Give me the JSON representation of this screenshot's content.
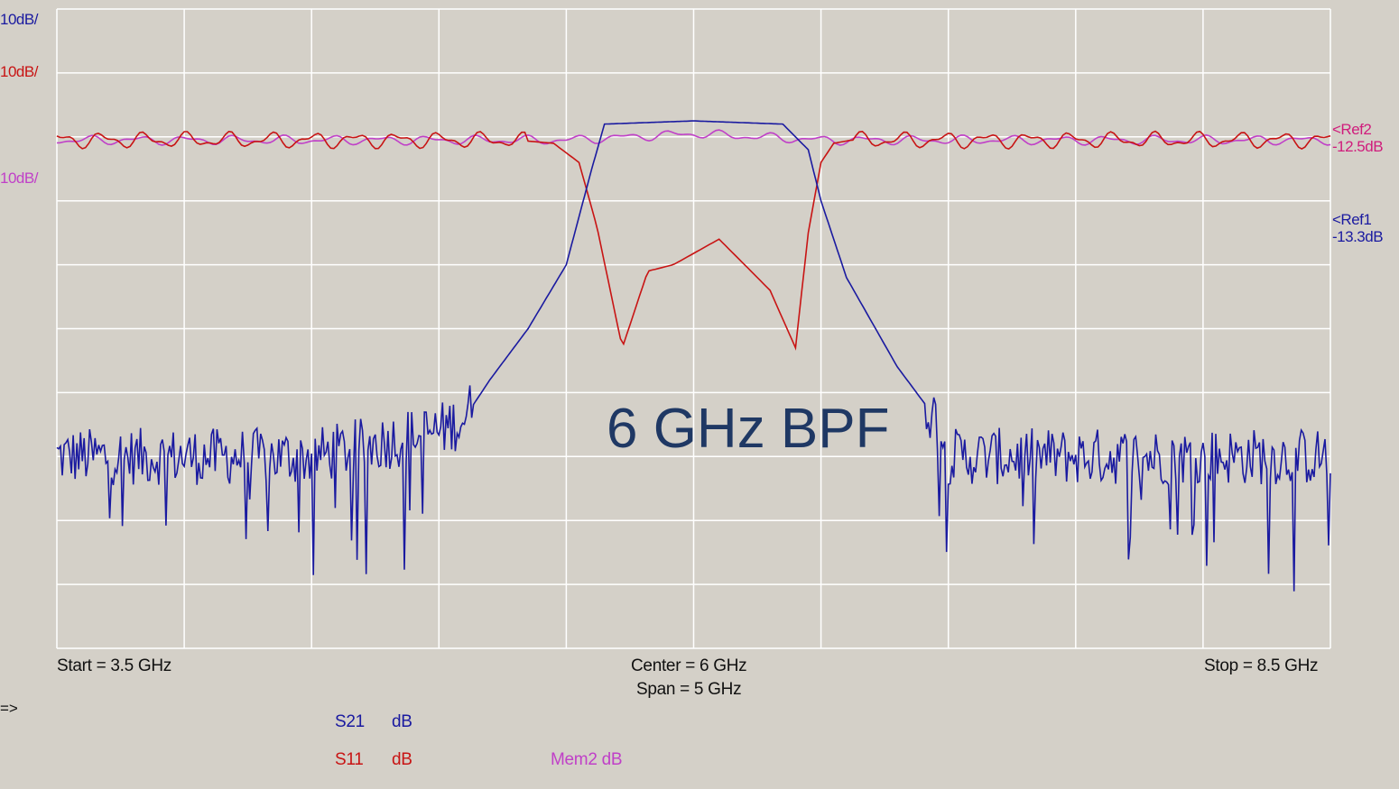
{
  "analyzer": {
    "scale_labels": [
      {
        "text": "10dB/",
        "color": "#1a1aa0"
      },
      {
        "text": "10dB/",
        "color": "#c81414"
      },
      {
        "text": "10dB/",
        "color": "#c040c8"
      }
    ],
    "ref_markers": [
      {
        "arrow": "<Ref2",
        "value": "-12.5dB",
        "color": "#d01c7c"
      },
      {
        "arrow": "<Ref1",
        "value": "-13.3dB",
        "color": "#1a1aa0"
      }
    ],
    "start_label": "Start = 3.5 GHz",
    "center_label": "Center = 6 GHz",
    "span_label": "Span = 5 GHz",
    "stop_label": "Stop = 8.5 GHz",
    "prompt": "=>",
    "legend": [
      {
        "name": "S21",
        "unit": "dB",
        "color": "#1a1aa0"
      },
      {
        "name": "S11",
        "unit": "dB",
        "color": "#c81414"
      },
      {
        "name": "Mem2 dB",
        "unit": "",
        "color": "#c040c8"
      }
    ]
  },
  "annotation": "6 GHz BPF",
  "unit_label": "dBm",
  "chart_data": {
    "type": "line",
    "xlim": [
      3.5,
      8.5
    ],
    "ylim": [
      -100,
      0
    ],
    "grid": true,
    "colors": {
      "grid": "#ffffff",
      "S21": "#1a1aa0",
      "S11": "#c81414",
      "Mem2": "#c040c8",
      "background": "#d4d0c8"
    },
    "series": [
      {
        "name": "S21",
        "x": [
          3.5,
          4.0,
          4.5,
          5.0,
          5.1,
          5.2,
          5.35,
          5.5,
          5.6,
          5.65,
          6.0,
          6.35,
          6.45,
          6.5,
          6.6,
          6.8,
          6.95,
          7.0,
          8.5
        ],
        "y": [
          -70,
          -70,
          -70,
          -66,
          -64,
          -58,
          -50,
          -40,
          -25,
          -18,
          -17.5,
          -18,
          -22,
          -30,
          -42,
          -56,
          -64,
          -70,
          -70
        ]
      },
      {
        "name": "S11",
        "x": [
          3.5,
          5.3,
          5.45,
          5.55,
          5.62,
          5.72,
          5.82,
          5.92,
          6.1,
          6.3,
          6.4,
          6.45,
          6.5,
          6.55,
          6.62,
          6.8,
          8.5
        ],
        "y": [
          -20.5,
          -20.5,
          -21,
          -24,
          -34,
          -53,
          -41,
          -40,
          -36,
          -44,
          -53,
          -35,
          -24,
          -21,
          -20.5,
          -20.5,
          -20.5
        ]
      },
      {
        "name": "Mem2",
        "x": [
          3.5,
          5.5,
          6.0,
          6.5,
          8.5
        ],
        "y": [
          -20.5,
          -20.5,
          -19.5,
          -20.5,
          -20.5
        ]
      }
    ]
  }
}
